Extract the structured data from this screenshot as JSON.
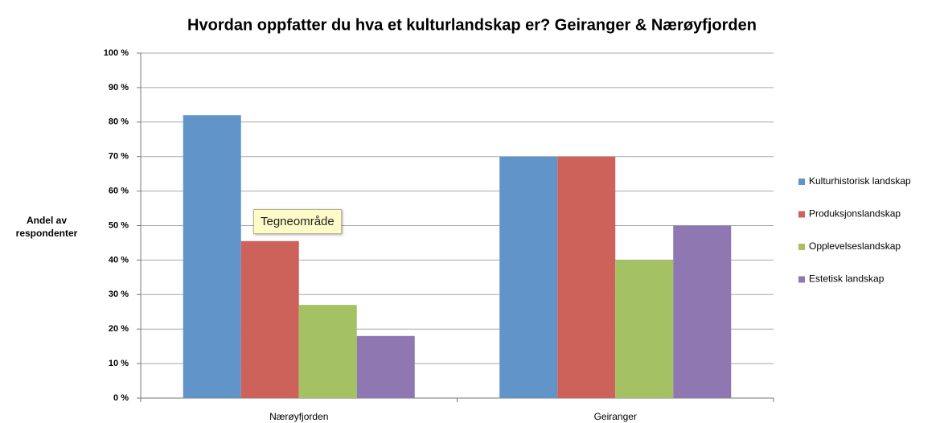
{
  "chart_data": {
    "type": "bar",
    "title": "Hvordan oppfatter du hva et kulturlandskap er? Geiranger & Nærøyfjorden",
    "y_label": "Andel av respondenter",
    "annotation": "Tegneområde",
    "categories": [
      "Nærøyfjorden",
      "Geiranger"
    ],
    "series": [
      {
        "name": "Kulturhistorisk landskap",
        "color": "#6194c9",
        "values": [
          82,
          70
        ]
      },
      {
        "name": "Produksjonslandskap",
        "color": "#cd625b",
        "values": [
          45.5,
          70
        ]
      },
      {
        "name": "Opplevelseslandskap",
        "color": "#a4c164",
        "values": [
          27,
          40
        ]
      },
      {
        "name": "Estetisk landskap",
        "color": "#8f77b1",
        "values": [
          18,
          50
        ]
      }
    ],
    "ylim": [
      0,
      100
    ],
    "yticks": [
      {
        "value": 0,
        "label": "0 %"
      },
      {
        "value": 10,
        "label": "10 %"
      },
      {
        "value": 20,
        "label": "20 %"
      },
      {
        "value": 30,
        "label": "30 %"
      },
      {
        "value": 40,
        "label": "40 %"
      },
      {
        "value": 50,
        "label": "50 %"
      },
      {
        "value": 60,
        "label": "60 %"
      },
      {
        "value": 70,
        "label": "70 %"
      },
      {
        "value": 80,
        "label": "80 %"
      },
      {
        "value": 90,
        "label": "90 %"
      },
      {
        "value": 100,
        "label": "100 %"
      }
    ],
    "grid": true,
    "legend": "right"
  }
}
